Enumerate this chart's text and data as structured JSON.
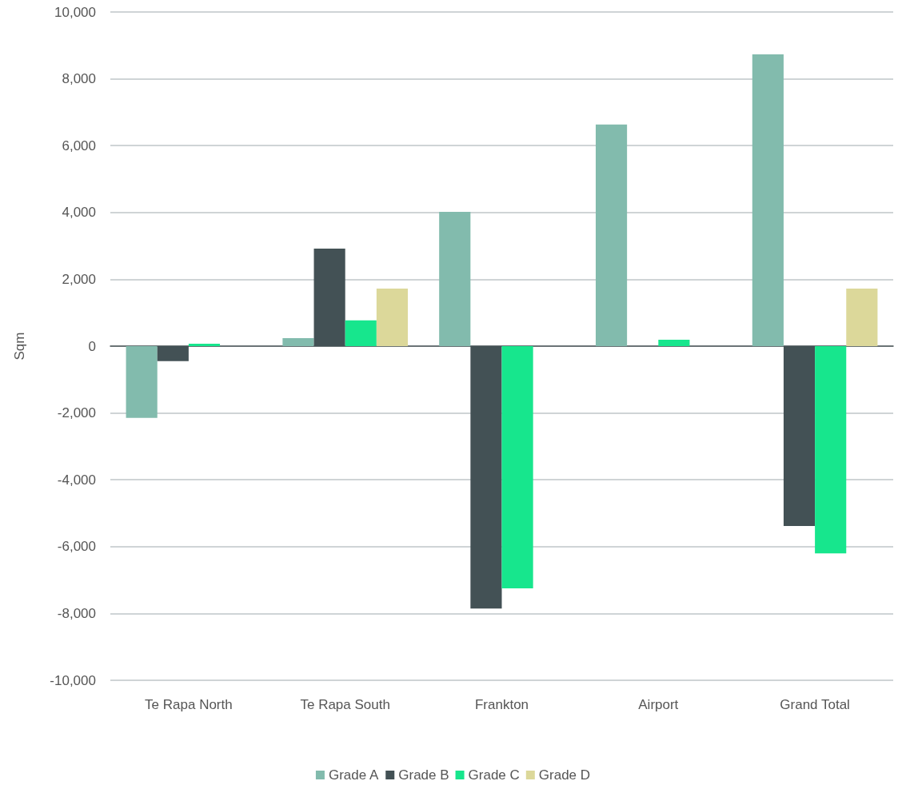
{
  "chart_data": {
    "type": "bar",
    "ylabel": "Sqm",
    "categories": [
      "Te Rapa North",
      "Te Rapa South",
      "Frankton",
      "Airport",
      "Grand Total"
    ],
    "series": [
      {
        "name": "Grade A",
        "color": "#82bbad",
        "values": [
          -2150,
          240,
          4020,
          6630,
          8730
        ]
      },
      {
        "name": "Grade B",
        "color": "#435155",
        "values": [
          -450,
          2920,
          -7850,
          0,
          -5380
        ]
      },
      {
        "name": "Grade C",
        "color": "#17e68d",
        "values": [
          70,
          770,
          -7250,
          190,
          -6200
        ]
      },
      {
        "name": "Grade D",
        "color": "#dcd89a",
        "values": [
          0,
          1720,
          0,
          0,
          1720
        ]
      }
    ],
    "ylim": [
      -10000,
      10000
    ],
    "yticks": [
      {
        "value": -10000,
        "label": "-10,000"
      },
      {
        "value": -8000,
        "label": "-8,000"
      },
      {
        "value": -6000,
        "label": "-6,000"
      },
      {
        "value": -4000,
        "label": "-4,000"
      },
      {
        "value": -2000,
        "label": "-2,000"
      },
      0,
      {
        "value": 2000,
        "label": "2,000"
      },
      {
        "value": 4000,
        "label": "4,000"
      },
      {
        "value": 6000,
        "label": "6,000"
      },
      {
        "value": 8000,
        "label": "8,000"
      },
      {
        "value": 10000,
        "label": "10,000"
      }
    ],
    "grid": "y",
    "legend": "bottom"
  }
}
